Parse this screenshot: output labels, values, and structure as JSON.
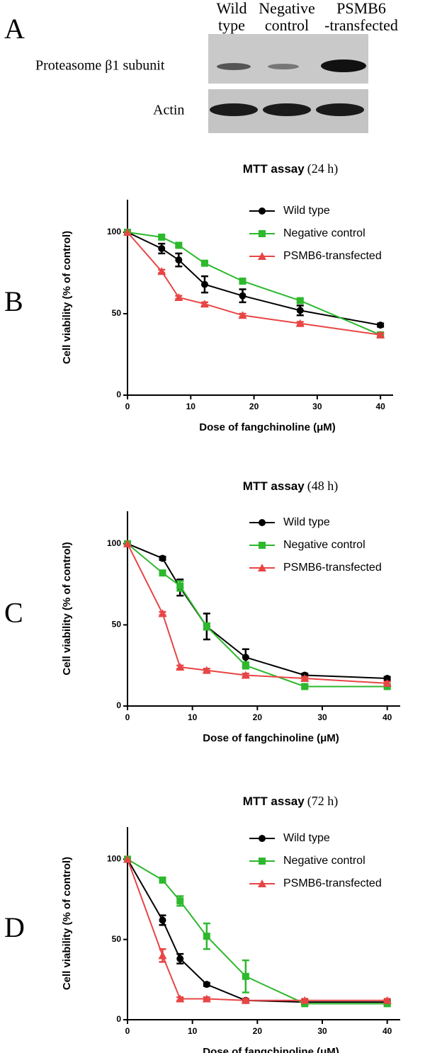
{
  "panel_a": {
    "panel": "A",
    "columns": [
      [
        "Wild",
        "type"
      ],
      [
        "Negative",
        "control"
      ],
      [
        "PSMB6",
        "-transfected"
      ]
    ],
    "rows": [
      "Proteasome β1 subunit",
      "Actin"
    ]
  },
  "chart_data": [
    {
      "type": "line",
      "panel": "B",
      "title": "MTT assay",
      "subtitle": "(24 h)",
      "x_label": "Dose of fangchinoline (μM)",
      "y_label": "Cell viability (% of control)",
      "x": [
        0,
        5.4,
        8.1,
        12.2,
        18.2,
        27.3,
        40
      ],
      "xlim": [
        0,
        42
      ],
      "xticks": [
        0,
        10,
        20,
        30,
        40
      ],
      "ylim": [
        0,
        120
      ],
      "yticks": [
        0,
        50,
        100
      ],
      "legend": "upper right",
      "series": [
        {
          "name": "Wild type",
          "color": "#000000",
          "marker": "circle",
          "values": [
            100,
            90,
            83,
            68,
            61,
            52,
            43
          ],
          "errors": [
            0,
            3,
            4,
            5,
            4,
            3,
            1
          ]
        },
        {
          "name": "Negative control",
          "color": "#2db82d",
          "marker": "square",
          "values": [
            100,
            97,
            92,
            81,
            70,
            58,
            37
          ],
          "errors": [
            0,
            1,
            1,
            1,
            1,
            1,
            1
          ]
        },
        {
          "name": "PSMB6-transfected",
          "color": "#e84545",
          "marker": "triangle",
          "values": [
            100,
            76,
            60,
            56,
            49,
            44,
            37
          ],
          "errors": [
            0,
            1,
            1,
            1,
            1,
            1,
            1
          ]
        }
      ]
    },
    {
      "type": "line",
      "panel": "C",
      "title": "MTT assay",
      "subtitle": "(48 h)",
      "x_label": "Dose of fangchinoline (μM)",
      "y_label": "Cell viability (% of control)",
      "x": [
        0,
        5.4,
        8.1,
        12.2,
        18.2,
        27.3,
        40
      ],
      "xlim": [
        0,
        42
      ],
      "xticks": [
        0,
        10,
        20,
        30,
        40
      ],
      "ylim": [
        0,
        120
      ],
      "yticks": [
        0,
        50,
        100
      ],
      "legend": "upper right",
      "series": [
        {
          "name": "Wild type",
          "color": "#000000",
          "marker": "circle",
          "values": [
            100,
            91,
            73,
            49,
            30,
            19,
            17
          ],
          "errors": [
            0,
            1,
            5,
            8,
            5,
            1,
            1
          ]
        },
        {
          "name": "Negative control",
          "color": "#2db82d",
          "marker": "square",
          "values": [
            100,
            82,
            74,
            49,
            25,
            12,
            12
          ],
          "errors": [
            0,
            1,
            3,
            2,
            2,
            1,
            1
          ]
        },
        {
          "name": "PSMB6-transfected",
          "color": "#e84545",
          "marker": "triangle",
          "values": [
            100,
            57,
            24,
            22,
            19,
            17,
            14
          ],
          "errors": [
            0,
            1,
            1,
            1,
            1,
            1,
            1
          ]
        }
      ]
    },
    {
      "type": "line",
      "panel": "D",
      "title": "MTT assay",
      "subtitle": "(72 h)",
      "x_label": "Dose of fangchinoline (μM)",
      "y_label": "Cell viability (% of control)",
      "x": [
        0,
        5.4,
        8.1,
        12.2,
        18.2,
        27.3,
        40
      ],
      "xlim": [
        0,
        42
      ],
      "xticks": [
        0,
        10,
        20,
        30,
        40
      ],
      "ylim": [
        0,
        120
      ],
      "yticks": [
        0,
        50,
        100
      ],
      "legend": "upper right",
      "series": [
        {
          "name": "Wild type",
          "color": "#000000",
          "marker": "circle",
          "values": [
            100,
            62,
            38,
            22,
            12,
            11,
            11
          ],
          "errors": [
            0,
            3,
            3,
            1,
            1,
            1,
            1
          ]
        },
        {
          "name": "Negative control",
          "color": "#2db82d",
          "marker": "square",
          "values": [
            100,
            87,
            74,
            52,
            27,
            10,
            10
          ],
          "errors": [
            0,
            1,
            3,
            8,
            10,
            1,
            1
          ]
        },
        {
          "name": "PSMB6-transfected",
          "color": "#e84545",
          "marker": "triangle",
          "values": [
            100,
            40,
            13,
            13,
            12,
            12,
            12
          ],
          "errors": [
            0,
            4,
            1,
            1,
            1,
            1,
            1
          ]
        }
      ]
    }
  ]
}
